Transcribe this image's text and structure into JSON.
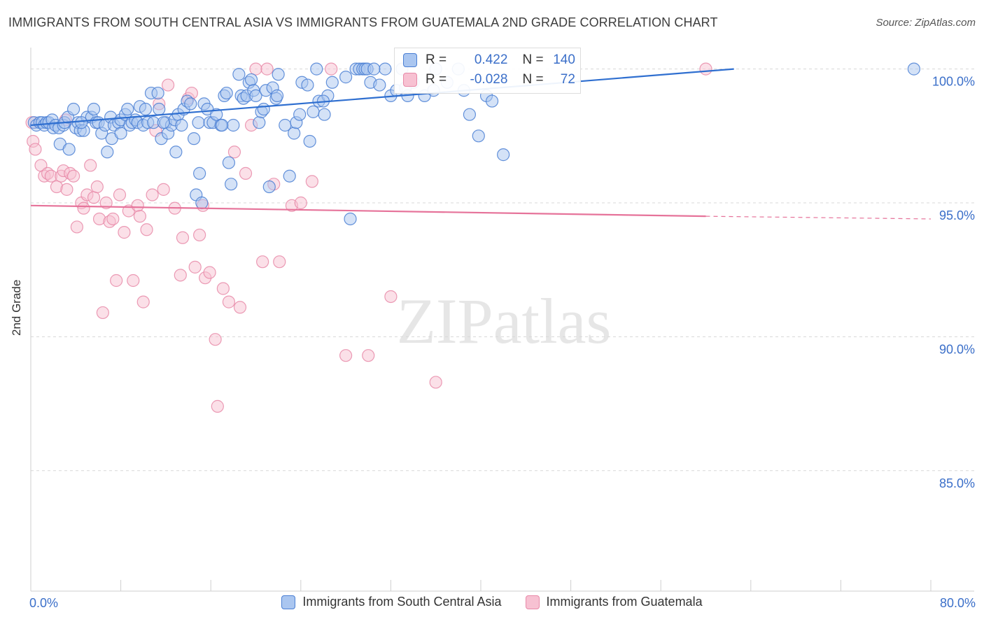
{
  "title": "IMMIGRANTS FROM SOUTH CENTRAL ASIA VS IMMIGRANTS FROM GUATEMALA 2ND GRADE CORRELATION CHART",
  "source": "Source: ZipAtlas.com",
  "watermark": "ZIPatlas",
  "colors": {
    "blue_fill": "#aac6f0",
    "blue_stroke": "#4a7fd4",
    "blue_line": "#2f6fd0",
    "pink_fill": "#f7c1d2",
    "pink_stroke": "#e889a8",
    "pink_line": "#e6739a",
    "tick_label": "#3b6fc9",
    "grid": "#d8d8d8"
  },
  "legend_box": {
    "rows": [
      {
        "series": "blue",
        "r_label": "R =",
        "r_value": "0.422",
        "n_label": "N =",
        "n_value": "140"
      },
      {
        "series": "pink",
        "r_label": "R =",
        "r_value": "-0.028",
        "n_label": "N =",
        "n_value": "72"
      }
    ]
  },
  "chart_data": {
    "type": "scatter",
    "title": "IMMIGRANTS FROM SOUTH CENTRAL ASIA VS IMMIGRANTS FROM GUATEMALA 2ND GRADE CORRELATION CHART",
    "xlabel": "",
    "ylabel": "2nd Grade",
    "xlim": [
      0,
      80
    ],
    "ylim": [
      80.5,
      100.8
    ],
    "x_tick_labels": [
      "0.0%",
      "80.0%"
    ],
    "y_ticks": [
      85,
      90,
      95,
      100
    ],
    "y_tick_labels": [
      "85.0%",
      "90.0%",
      "95.0%",
      "100.0%"
    ],
    "grid": "horizontal dashed",
    "legend_position": "bottom",
    "series": [
      {
        "name": "Immigrants from South Central Asia",
        "color": "#4a7fd4",
        "trend": {
          "x0": 0,
          "y0": 97.9,
          "x1": 62.5,
          "y1": 100.0
        },
        "points": [
          [
            0.3,
            98.0
          ],
          [
            0.5,
            97.9
          ],
          [
            0.8,
            98.0
          ],
          [
            1.0,
            98.0
          ],
          [
            1.2,
            97.9
          ],
          [
            1.4,
            98.0
          ],
          [
            1.6,
            98.0
          ],
          [
            1.9,
            98.1
          ],
          [
            2.0,
            97.8
          ],
          [
            2.2,
            97.9
          ],
          [
            2.5,
            97.8
          ],
          [
            2.6,
            97.2
          ],
          [
            2.9,
            97.9
          ],
          [
            3.0,
            98.0
          ],
          [
            3.3,
            98.2
          ],
          [
            3.4,
            97.0
          ],
          [
            3.8,
            98.5
          ],
          [
            4.0,
            97.8
          ],
          [
            4.2,
            98.0
          ],
          [
            4.4,
            97.7
          ],
          [
            4.7,
            97.7
          ],
          [
            5.0,
            98.2
          ],
          [
            5.4,
            98.2
          ],
          [
            5.6,
            98.5
          ],
          [
            5.8,
            98.0
          ],
          [
            6.0,
            98.0
          ],
          [
            6.3,
            97.6
          ],
          [
            6.6,
            97.9
          ],
          [
            6.8,
            96.9
          ],
          [
            7.1,
            98.2
          ],
          [
            7.2,
            97.4
          ],
          [
            7.4,
            97.9
          ],
          [
            7.8,
            98.0
          ],
          [
            8.0,
            98.1
          ],
          [
            8.0,
            97.6
          ],
          [
            8.4,
            98.3
          ],
          [
            8.6,
            98.5
          ],
          [
            8.8,
            97.9
          ],
          [
            9.0,
            98.0
          ],
          [
            9.3,
            98.1
          ],
          [
            9.5,
            98.0
          ],
          [
            9.7,
            98.6
          ],
          [
            10.0,
            97.9
          ],
          [
            10.2,
            98.5
          ],
          [
            10.4,
            98.0
          ],
          [
            10.7,
            99.1
          ],
          [
            10.9,
            98.0
          ],
          [
            11.3,
            99.1
          ],
          [
            11.4,
            98.5
          ],
          [
            11.6,
            97.4
          ],
          [
            12.0,
            98.0
          ],
          [
            12.2,
            97.6
          ],
          [
            12.5,
            97.9
          ],
          [
            12.8,
            98.1
          ],
          [
            12.9,
            96.9
          ],
          [
            13.1,
            98.3
          ],
          [
            13.4,
            97.9
          ],
          [
            13.6,
            98.5
          ],
          [
            13.9,
            98.8
          ],
          [
            14.2,
            98.7
          ],
          [
            14.5,
            97.4
          ],
          [
            14.7,
            95.3
          ],
          [
            14.9,
            98.0
          ],
          [
            15.0,
            96.1
          ],
          [
            15.2,
            95.0
          ],
          [
            15.4,
            98.7
          ],
          [
            15.7,
            98.5
          ],
          [
            15.9,
            98.0
          ],
          [
            16.2,
            98.0
          ],
          [
            16.5,
            98.3
          ],
          [
            16.9,
            97.9
          ],
          [
            17.2,
            99.0
          ],
          [
            17.4,
            99.1
          ],
          [
            17.6,
            96.5
          ],
          [
            17.8,
            95.7
          ],
          [
            18.0,
            97.9
          ],
          [
            18.5,
            99.8
          ],
          [
            18.7,
            99.0
          ],
          [
            18.9,
            98.9
          ],
          [
            19.2,
            99.0
          ],
          [
            19.4,
            99.5
          ],
          [
            19.6,
            99.6
          ],
          [
            19.8,
            99.2
          ],
          [
            20.0,
            99.0
          ],
          [
            20.3,
            98.0
          ],
          [
            20.5,
            98.4
          ],
          [
            20.7,
            98.5
          ],
          [
            20.9,
            99.2
          ],
          [
            21.2,
            95.6
          ],
          [
            21.5,
            99.3
          ],
          [
            21.8,
            98.9
          ],
          [
            22.0,
            99.8
          ],
          [
            22.6,
            97.9
          ],
          [
            23.0,
            96.0
          ],
          [
            23.4,
            97.6
          ],
          [
            23.6,
            98.0
          ],
          [
            23.9,
            98.3
          ],
          [
            24.1,
            99.5
          ],
          [
            24.6,
            99.4
          ],
          [
            24.8,
            97.3
          ],
          [
            25.1,
            98.4
          ],
          [
            25.4,
            100.0
          ],
          [
            25.6,
            98.8
          ],
          [
            26.1,
            98.3
          ],
          [
            26.4,
            99.0
          ],
          [
            26.8,
            99.5
          ],
          [
            28.0,
            99.7
          ],
          [
            28.4,
            94.4
          ],
          [
            28.9,
            100.0
          ],
          [
            29.2,
            100.0
          ],
          [
            29.5,
            100.0
          ],
          [
            29.7,
            100.0
          ],
          [
            29.9,
            100.0
          ],
          [
            30.2,
            99.5
          ],
          [
            31.0,
            99.4
          ],
          [
            31.5,
            100.0
          ],
          [
            32.0,
            99.0
          ],
          [
            32.5,
            99.2
          ],
          [
            33.0,
            100.0
          ],
          [
            33.3,
            99.3
          ],
          [
            34.0,
            99.5
          ],
          [
            35.0,
            99.0
          ],
          [
            36.0,
            100.0
          ],
          [
            37.0,
            99.5
          ],
          [
            38.0,
            100.0
          ],
          [
            38.5,
            99.2
          ],
          [
            39.0,
            98.3
          ],
          [
            39.8,
            97.5
          ],
          [
            40.5,
            99.0
          ],
          [
            41.0,
            98.8
          ],
          [
            42.0,
            96.8
          ],
          [
            78.5,
            100.0
          ],
          [
            4.5,
            98.0
          ],
          [
            11.8,
            98.0
          ],
          [
            17.0,
            97.9
          ],
          [
            21.9,
            99.0
          ],
          [
            26.0,
            98.8
          ],
          [
            33.5,
            99.0
          ],
          [
            35.8,
            99.2
          ],
          [
            30.5,
            100.0
          ]
        ]
      },
      {
        "name": "Immigrants from Guatemala",
        "color": "#e889a8",
        "trend": {
          "x0": 0,
          "y0": 94.9,
          "x1": 60.0,
          "y1": 94.5,
          "dash_to_x": 80,
          "dash_to_y": 94.4
        },
        "points": [
          [
            0.1,
            98.0
          ],
          [
            0.2,
            97.3
          ],
          [
            0.4,
            97.0
          ],
          [
            0.9,
            96.4
          ],
          [
            1.2,
            96.0
          ],
          [
            1.5,
            96.1
          ],
          [
            1.8,
            96.0
          ],
          [
            2.3,
            95.6
          ],
          [
            2.7,
            96.0
          ],
          [
            2.9,
            96.2
          ],
          [
            3.2,
            95.5
          ],
          [
            3.5,
            96.1
          ],
          [
            3.8,
            96.0
          ],
          [
            4.1,
            94.1
          ],
          [
            4.5,
            95.0
          ],
          [
            4.7,
            94.8
          ],
          [
            5.0,
            95.3
          ],
          [
            5.3,
            96.4
          ],
          [
            5.6,
            95.2
          ],
          [
            5.9,
            95.6
          ],
          [
            6.1,
            94.4
          ],
          [
            6.4,
            90.9
          ],
          [
            6.7,
            95.0
          ],
          [
            7.0,
            94.3
          ],
          [
            7.3,
            94.4
          ],
          [
            7.6,
            92.1
          ],
          [
            7.9,
            95.3
          ],
          [
            8.3,
            93.9
          ],
          [
            8.7,
            94.7
          ],
          [
            9.1,
            92.1
          ],
          [
            9.5,
            94.9
          ],
          [
            9.7,
            94.5
          ],
          [
            10.0,
            91.3
          ],
          [
            10.3,
            94.0
          ],
          [
            10.8,
            95.3
          ],
          [
            11.1,
            97.7
          ],
          [
            11.4,
            98.7
          ],
          [
            11.8,
            95.5
          ],
          [
            12.2,
            99.4
          ],
          [
            12.8,
            94.8
          ],
          [
            13.3,
            92.3
          ],
          [
            13.5,
            93.7
          ],
          [
            14.0,
            98.9
          ],
          [
            14.3,
            99.1
          ],
          [
            14.6,
            92.6
          ],
          [
            15.0,
            93.8
          ],
          [
            15.3,
            94.9
          ],
          [
            15.5,
            92.2
          ],
          [
            15.9,
            92.4
          ],
          [
            16.4,
            89.9
          ],
          [
            16.6,
            87.4
          ],
          [
            17.1,
            91.8
          ],
          [
            17.6,
            91.3
          ],
          [
            18.1,
            96.9
          ],
          [
            18.6,
            91.1
          ],
          [
            19.1,
            96.1
          ],
          [
            19.6,
            97.9
          ],
          [
            20.0,
            100.0
          ],
          [
            20.6,
            92.8
          ],
          [
            21.0,
            100.0
          ],
          [
            21.6,
            95.7
          ],
          [
            22.1,
            92.8
          ],
          [
            23.2,
            94.9
          ],
          [
            24.0,
            95.0
          ],
          [
            25.0,
            95.8
          ],
          [
            26.7,
            100.0
          ],
          [
            28.0,
            89.3
          ],
          [
            30.0,
            89.3
          ],
          [
            32.0,
            91.5
          ],
          [
            36.0,
            88.3
          ],
          [
            60.0,
            100.0
          ],
          [
            3.1,
            98.1
          ]
        ]
      }
    ]
  },
  "legend": {
    "items": [
      {
        "label": "Immigrants from South Central Asia"
      },
      {
        "label": "Immigrants from Guatemala"
      }
    ]
  },
  "axis_text": {
    "x_left": "0.0%",
    "x_right": "80.0%",
    "y_label": "2nd Grade"
  }
}
